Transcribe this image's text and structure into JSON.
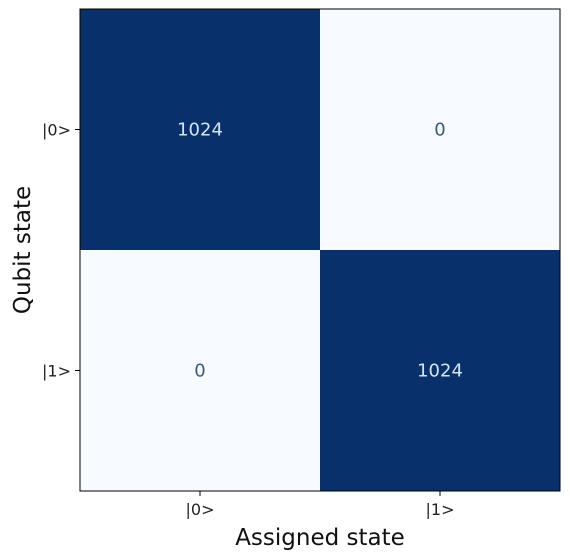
{
  "chart_data": {
    "type": "heatmap",
    "title": "",
    "xlabel": "Assigned state",
    "ylabel": "Qubit state",
    "x_categories": [
      "|0>",
      "|1>"
    ],
    "y_categories": [
      "|0>",
      "|1>"
    ],
    "values": [
      [
        1024,
        0
      ],
      [
        0,
        1024
      ]
    ],
    "value_range": [
      0,
      1024
    ],
    "colormap": "Blues",
    "colors": {
      "low": "#f7fbff",
      "high": "#08306b",
      "text_on_dark": "#d6e4f5",
      "text_on_light": "#3b5a7a"
    },
    "grid": false,
    "colorbar": false
  }
}
